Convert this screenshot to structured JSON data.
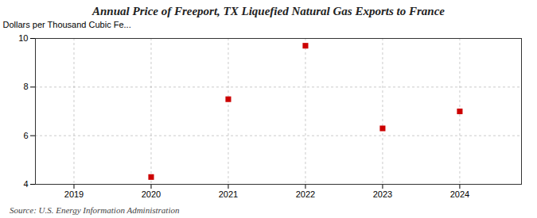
{
  "chart_data": {
    "type": "scatter",
    "title": "Annual Price of Freeport, TX Liquefied Natural Gas Exports to France",
    "ylabel": "Dollars per Thousand Cubic Fe...",
    "annotations": [
      "Source: U.S. Energy Information Administration"
    ],
    "x": [
      2020,
      2021,
      2022,
      2023,
      2024
    ],
    "values": [
      4.3,
      7.5,
      9.7,
      6.3,
      7.0
    ],
    "xlim": [
      2018.5,
      2024.8
    ],
    "xticks": [
      2019,
      2020,
      2021,
      2022,
      2023,
      2024
    ],
    "ylim": [
      4,
      10
    ],
    "yticks": [
      4,
      6,
      8,
      10
    ],
    "color": "#cc0000",
    "marker": "square",
    "grid": true
  }
}
